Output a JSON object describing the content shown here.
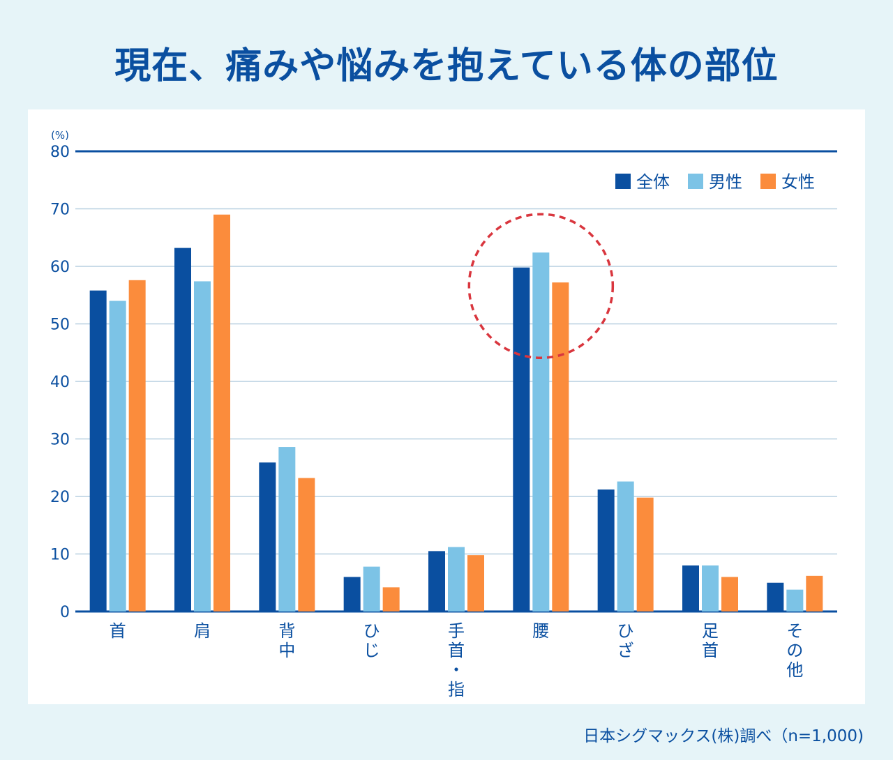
{
  "chart_data": {
    "type": "bar",
    "title": "現在、痛みや悩みを抱えている体の部位",
    "unit_label": "(%)",
    "ylim": [
      0,
      80
    ],
    "yticks": [
      0,
      10,
      20,
      30,
      40,
      50,
      60,
      70,
      80
    ],
    "categories": [
      "首",
      "肩",
      "背中",
      "ひじ",
      "手首・指",
      "腰",
      "ひざ",
      "足首",
      "その他"
    ],
    "series": [
      {
        "name": "全体",
        "color": "#0a4fa0",
        "values": [
          55.8,
          63.2,
          25.9,
          6.0,
          10.5,
          59.8,
          21.2,
          8.0,
          5.0
        ]
      },
      {
        "name": "男性",
        "color": "#7cc3e6",
        "values": [
          54.0,
          57.4,
          28.6,
          7.8,
          11.2,
          62.4,
          22.6,
          8.0,
          3.8
        ]
      },
      {
        "name": "女性",
        "color": "#fb8c3c",
        "values": [
          57.6,
          69.0,
          23.2,
          4.2,
          9.8,
          57.2,
          19.8,
          6.0,
          6.2
        ]
      }
    ],
    "highlight_category": "腰",
    "highlight_color": "#d9363e"
  },
  "source_note": "日本シグマックス(株)調べ（n=1,000)"
}
